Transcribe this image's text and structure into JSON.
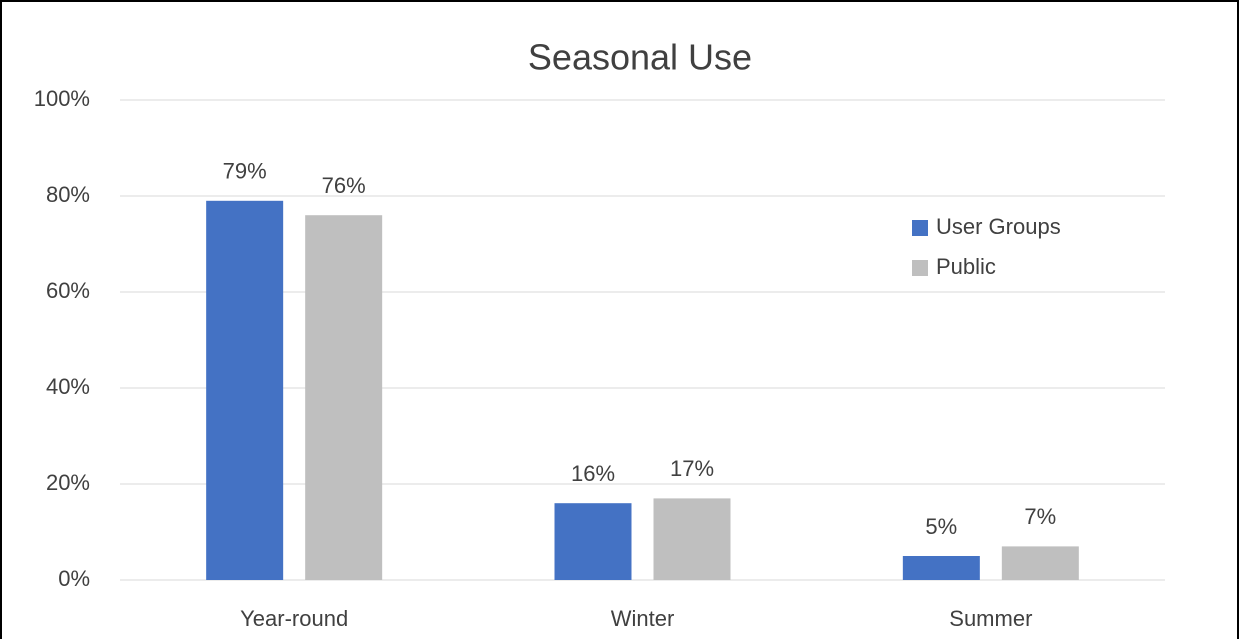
{
  "chart_data": {
    "type": "bar",
    "title": "Seasonal Use",
    "categories": [
      "Year-round",
      "Winter",
      "Summer"
    ],
    "series": [
      {
        "name": "User Groups",
        "color": "#4472c4",
        "values": [
          79,
          16,
          5
        ],
        "value_labels": [
          "79%",
          "16%",
          "5%"
        ]
      },
      {
        "name": "Public",
        "color": "#bfbfbf",
        "values": [
          76,
          17,
          7
        ],
        "value_labels": [
          "76%",
          "17%",
          "7%"
        ]
      }
    ],
    "ylim": [
      0,
      100
    ],
    "yticks": [
      {
        "value": 0,
        "label": "0%"
      },
      {
        "value": 20,
        "label": "20%"
      },
      {
        "value": 40,
        "label": "40%"
      },
      {
        "value": 60,
        "label": "60%"
      },
      {
        "value": 80,
        "label": "80%"
      },
      {
        "value": 100,
        "label": "100%"
      }
    ],
    "grid": true,
    "legend": "right"
  }
}
